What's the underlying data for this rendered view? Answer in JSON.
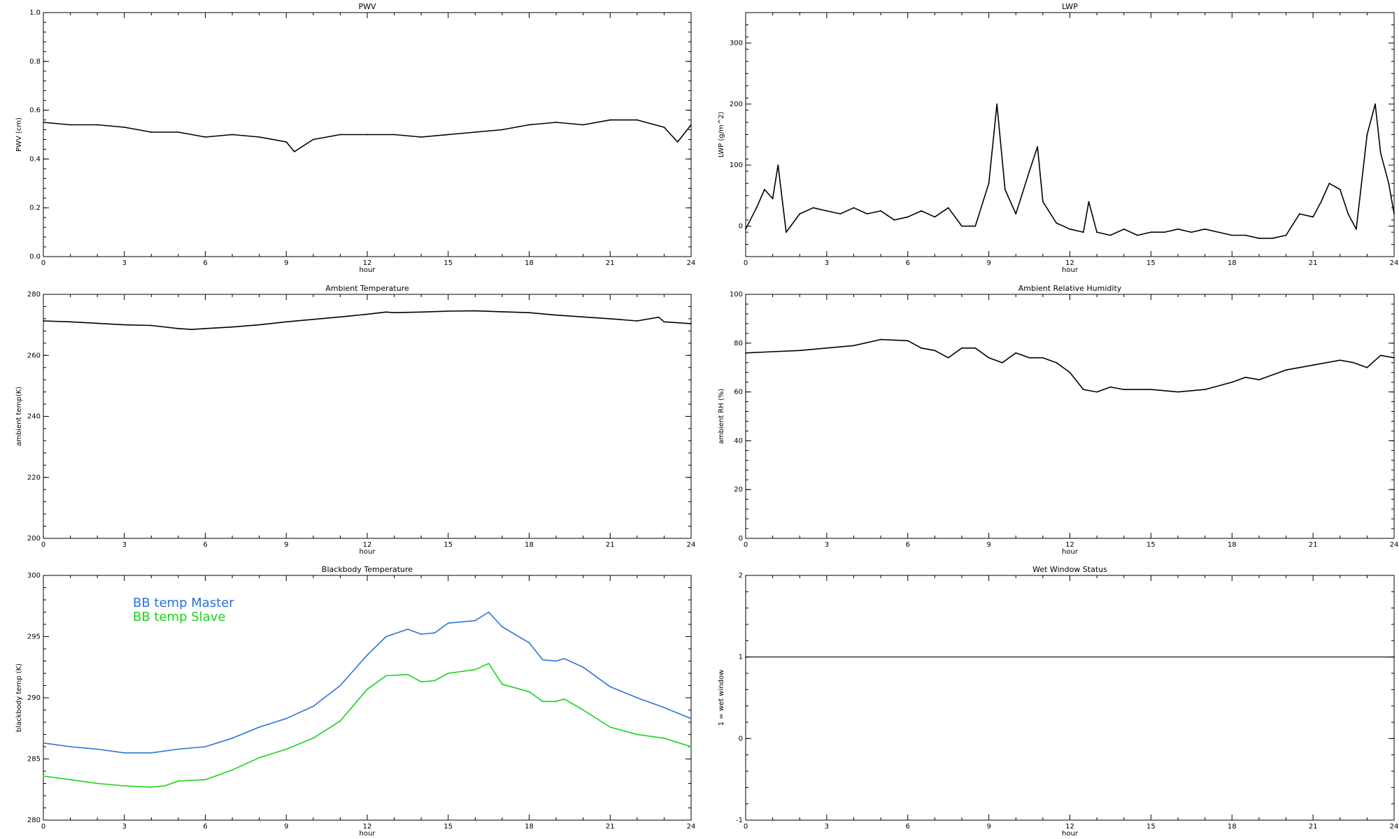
{
  "chart_data": [
    {
      "id": "pwv",
      "type": "line",
      "title": "PWV",
      "xlabel": "hour",
      "ylabel": "PWV (cm)",
      "xlim": [
        0,
        24
      ],
      "ylim": [
        0.0,
        1.0
      ],
      "xticks": [
        "0",
        "3",
        "6",
        "9",
        "12",
        "15",
        "18",
        "21",
        "24"
      ],
      "yticks": [
        "0.0",
        "0.2",
        "0.4",
        "0.6",
        "0.8",
        "1.0"
      ],
      "series": [
        {
          "color": "#000000",
          "x": [
            0,
            1,
            2,
            3,
            4,
            5,
            6,
            7,
            8,
            9,
            9.3,
            10,
            11,
            12,
            13,
            14,
            15,
            16,
            17,
            18,
            19,
            20,
            21,
            22,
            23,
            23.5,
            24
          ],
          "y": [
            0.55,
            0.54,
            0.54,
            0.53,
            0.51,
            0.51,
            0.49,
            0.5,
            0.49,
            0.47,
            0.43,
            0.48,
            0.5,
            0.5,
            0.5,
            0.49,
            0.5,
            0.51,
            0.52,
            0.54,
            0.55,
            0.54,
            0.56,
            0.56,
            0.53,
            0.47,
            0.54
          ]
        }
      ]
    },
    {
      "id": "lwp",
      "type": "line",
      "title": "LWP",
      "xlabel": "hour",
      "ylabel": "LWP (g/m^2)",
      "xlim": [
        0,
        24
      ],
      "ylim": [
        -50,
        350
      ],
      "xticks": [
        "0",
        "3",
        "6",
        "9",
        "12",
        "15",
        "18",
        "21",
        "24"
      ],
      "yticks": [
        "0",
        "100",
        "200",
        "300"
      ],
      "series": [
        {
          "color": "#000000",
          "x": [
            0,
            0.4,
            0.7,
            1.0,
            1.2,
            1.5,
            2,
            2.5,
            3,
            3.5,
            4,
            4.5,
            5,
            5.5,
            6,
            6.5,
            7,
            7.5,
            8,
            8.5,
            9,
            9.3,
            9.6,
            10,
            10.5,
            10.8,
            11,
            11.5,
            12,
            12.5,
            12.7,
            13,
            13.5,
            14,
            14.5,
            15,
            15.5,
            16,
            16.5,
            17,
            17.5,
            18,
            18.5,
            19,
            19.5,
            20,
            20.5,
            21,
            21.3,
            21.6,
            22,
            22.3,
            22.6,
            23,
            23.3,
            23.5,
            23.8,
            24
          ],
          "y": [
            -5,
            30,
            60,
            45,
            100,
            -10,
            20,
            30,
            25,
            20,
            30,
            20,
            25,
            10,
            15,
            25,
            15,
            30,
            0,
            0,
            70,
            200,
            60,
            20,
            90,
            130,
            40,
            5,
            -5,
            -10,
            40,
            -10,
            -15,
            -5,
            -15,
            -10,
            -10,
            -5,
            -10,
            -5,
            -10,
            -15,
            -15,
            -20,
            -20,
            -15,
            20,
            15,
            40,
            70,
            60,
            20,
            -5,
            150,
            200,
            120,
            70,
            20
          ]
        }
      ]
    },
    {
      "id": "temp",
      "type": "line",
      "title": "Ambient Temperature",
      "xlabel": "hour",
      "ylabel": "ambient temp(K)",
      "xlim": [
        0,
        24
      ],
      "ylim": [
        200,
        280
      ],
      "xticks": [
        "0",
        "3",
        "6",
        "9",
        "12",
        "15",
        "18",
        "21",
        "24"
      ],
      "yticks": [
        "200",
        "220",
        "240",
        "260",
        "280"
      ],
      "series": [
        {
          "color": "#000000",
          "x": [
            0,
            1,
            2,
            3,
            4,
            5,
            5.5,
            6,
            7,
            8,
            9,
            10,
            11,
            12,
            12.7,
            13,
            14,
            15,
            16,
            17,
            18,
            19,
            20,
            21,
            22,
            22.8,
            23,
            24
          ],
          "y": [
            271.3,
            271,
            270.5,
            270,
            269.8,
            268.8,
            268.5,
            268.8,
            269.3,
            270,
            271,
            271.8,
            272.6,
            273.5,
            274.2,
            274,
            274.2,
            274.5,
            274.6,
            274.3,
            274,
            273.2,
            272.6,
            272,
            271.3,
            272.5,
            271,
            270.4
          ]
        }
      ]
    },
    {
      "id": "rh",
      "type": "line",
      "title": "Ambient Relative Humidity",
      "xlabel": "hour",
      "ylabel": "ambient RH (%)",
      "xlim": [
        0,
        24
      ],
      "ylim": [
        0,
        100
      ],
      "xticks": [
        "0",
        "3",
        "6",
        "9",
        "12",
        "15",
        "18",
        "21",
        "24"
      ],
      "yticks": [
        "0",
        "20",
        "40",
        "60",
        "80",
        "100"
      ],
      "series": [
        {
          "color": "#000000",
          "x": [
            0,
            1,
            2,
            3,
            4,
            5,
            6,
            6.5,
            7,
            7.5,
            8,
            8.5,
            9,
            9.5,
            10,
            10.5,
            11,
            11.5,
            12,
            12.5,
            13,
            13.5,
            14,
            15,
            16,
            17,
            18,
            18.5,
            19,
            20,
            21,
            22,
            22.5,
            23,
            23.5,
            24
          ],
          "y": [
            76,
            76.5,
            77,
            78,
            79,
            81.5,
            81,
            78,
            77,
            74,
            78,
            78,
            74,
            72,
            76,
            74,
            74,
            72,
            68,
            61,
            60,
            62,
            61,
            61,
            60,
            61,
            64,
            66,
            65,
            69,
            71,
            73,
            72,
            70,
            75,
            74
          ]
        }
      ]
    },
    {
      "id": "bb",
      "type": "line",
      "title": "Blackbody Temperature",
      "xlabel": "hour",
      "ylabel": "blackbody temp (K)",
      "xlim": [
        0,
        24
      ],
      "ylim": [
        280,
        300
      ],
      "xticks": [
        "0",
        "3",
        "6",
        "9",
        "12",
        "15",
        "18",
        "21",
        "24"
      ],
      "yticks": [
        "280",
        "285",
        "290",
        "295",
        "300"
      ],
      "series": [
        {
          "name": "BB temp Master",
          "color": "#2b73d6",
          "x": [
            0,
            1,
            2,
            3,
            4,
            5,
            6,
            7,
            8,
            9,
            10,
            11,
            12,
            12.7,
            13.5,
            14,
            14.5,
            15,
            16,
            16.5,
            17,
            18,
            18.5,
            19,
            19.3,
            20,
            21,
            22,
            23,
            24
          ],
          "y": [
            286.3,
            286,
            285.8,
            285.5,
            285.5,
            285.8,
            286,
            286.7,
            287.6,
            288.3,
            289.3,
            291,
            293.5,
            295,
            295.6,
            295.2,
            295.3,
            296.1,
            296.3,
            297,
            295.8,
            294.5,
            293.1,
            293,
            293.2,
            292.5,
            290.9,
            290,
            289.2,
            288.3
          ]
        },
        {
          "name": "BB temp Slave",
          "color": "#19d319",
          "x": [
            0,
            1,
            2,
            3,
            4,
            4.5,
            5,
            6,
            7,
            8,
            9,
            10,
            11,
            12,
            12.7,
            13.5,
            14,
            14.5,
            15,
            16,
            16.5,
            17,
            18,
            18.5,
            19,
            19.3,
            20,
            21,
            22,
            23,
            24
          ],
          "y": [
            283.6,
            283.3,
            283,
            282.8,
            282.7,
            282.8,
            283.2,
            283.3,
            284.1,
            285.1,
            285.8,
            286.7,
            288.1,
            290.7,
            291.8,
            291.9,
            291.3,
            291.4,
            292,
            292.3,
            292.8,
            291.1,
            290.5,
            289.7,
            289.7,
            289.9,
            289,
            287.6,
            287,
            286.7,
            286
          ]
        }
      ]
    },
    {
      "id": "wet",
      "type": "line",
      "title": "Wet Window Status",
      "xlabel": "hour",
      "ylabel": "1 = wet window",
      "xlim": [
        0,
        24
      ],
      "ylim": [
        -1,
        2
      ],
      "xticks": [
        "0",
        "3",
        "6",
        "9",
        "12",
        "15",
        "18",
        "21",
        "24"
      ],
      "yticks": [
        "-1",
        "0",
        "1",
        "2"
      ],
      "series": [
        {
          "color": "#000000",
          "x": [
            0,
            24
          ],
          "y": [
            1,
            1
          ]
        }
      ]
    }
  ]
}
